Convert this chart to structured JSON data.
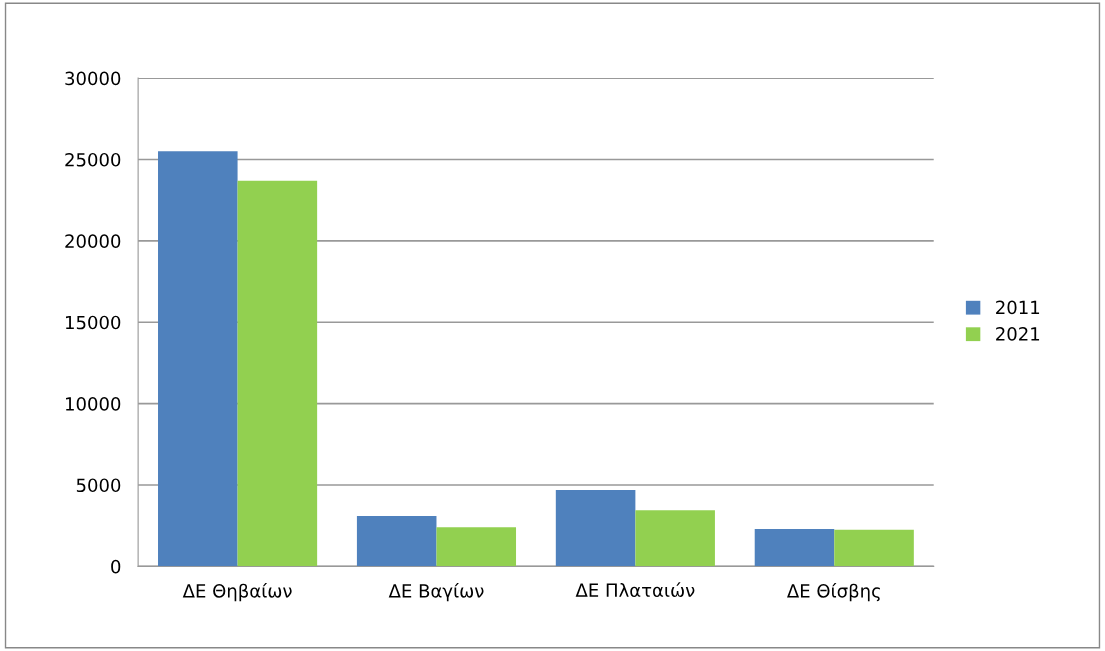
{
  "chart_data": {
    "type": "bar",
    "categories": [
      "ΔΕ Θηβαίων",
      "ΔΕ Βαγίων",
      "ΔΕ Πλαταιών",
      "ΔΕ Θίσβης"
    ],
    "series": [
      {
        "name": "2011",
        "color": "#4f81bd",
        "values": [
          25500,
          3100,
          4700,
          2300
        ]
      },
      {
        "name": "2021",
        "color": "#92d050",
        "values": [
          23700,
          2400,
          3450,
          2250
        ]
      }
    ],
    "ylim": [
      0,
      30000
    ],
    "yticks": [
      0,
      5000,
      10000,
      15000,
      20000,
      25000,
      30000
    ],
    "grid": "y",
    "legend": "right"
  }
}
